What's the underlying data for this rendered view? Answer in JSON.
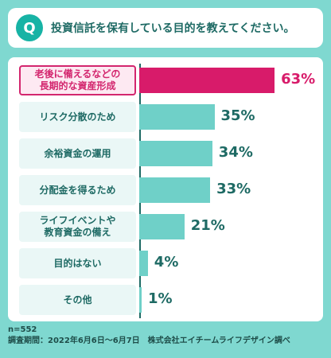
{
  "question": {
    "badge": "Q",
    "text": "投資信託を保有している目的を教えてください。"
  },
  "chart_data": {
    "type": "bar",
    "orientation": "horizontal",
    "categories": [
      "老後に備えるなどの\n長期的な資産形成",
      "リスク分散のため",
      "余裕資金の運用",
      "分配金を得るため",
      "ライフイベントや\n教育資金の備え",
      "目的はない",
      "その他"
    ],
    "values": [
      63,
      35,
      34,
      33,
      21,
      4,
      1
    ],
    "value_labels": [
      "63%",
      "35%",
      "34%",
      "33%",
      "21%",
      "4%",
      "1%"
    ],
    "unit": "%",
    "xlim": [
      0,
      100
    ],
    "highlight_index": 0,
    "colors": {
      "bar": "#6fd0c8",
      "highlight": "#d81b6a",
      "text": "#1e6a64"
    }
  },
  "footer": {
    "n": "n=552",
    "source": "調査期間：2022年6月6日〜6月7日　株式会社エイチームライフデザイン調べ"
  }
}
